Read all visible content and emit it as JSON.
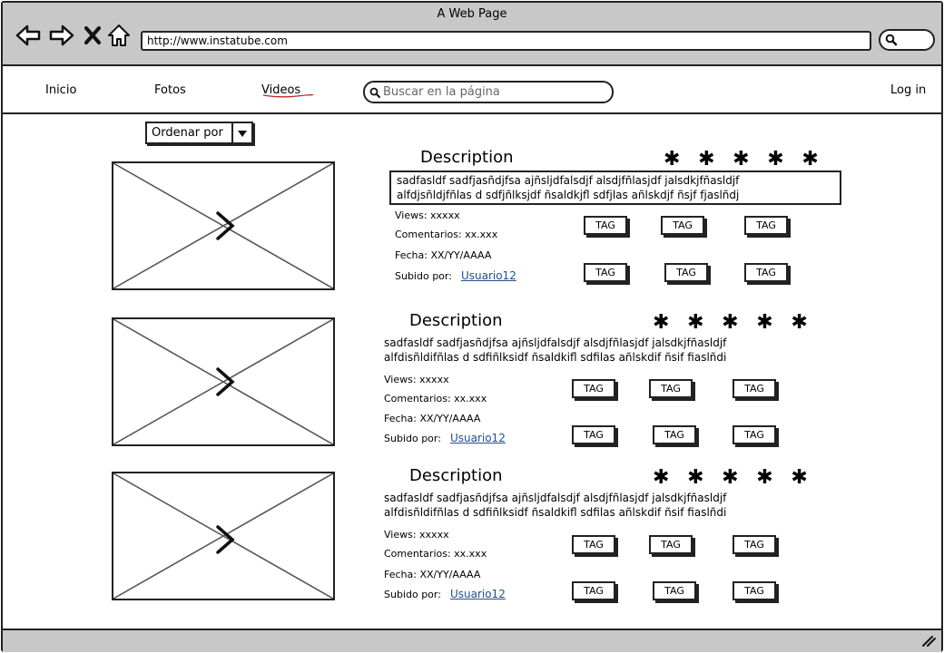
{
  "window": {
    "title": "A Web Page"
  },
  "address": {
    "url": "http://www.instatube.com"
  },
  "nav": {
    "inicio": "Inicio",
    "fotos": "Fotos",
    "videos": "Videos",
    "login": "Log in",
    "search_placeholder": "Buscar en la página"
  },
  "sort": {
    "label": "Ordenar por"
  },
  "videos": [
    {
      "title": "Description",
      "stars": "✱ ✱ ✱ ✱ ✱",
      "desc_line1": "sadfasldf  sadfjasñdjfsa  ajñsljdfalsdjf  alsdjfñlasjdf  jalsdkjfñasldjf",
      "desc_line2": "alfdjsñldjfñlas d sdfjñlksjdf  ñsaldkjfl sdfjlas  añlskdjf ñsjf   fjaslñdj",
      "views": "Views: xxxxx",
      "comments": "Comentarios: xx.xxx",
      "date": "Fecha: XX/YY/AAAA",
      "uploaded_by": "Subido por:",
      "user": "Usuario12",
      "tags": [
        "TAG",
        "TAG",
        "TAG",
        "TAG",
        "TAG",
        "TAG"
      ]
    },
    {
      "title": "Description",
      "stars": "✱ ✱ ✱ ✱ ✱",
      "desc_line1": "sadfasldf  sadfjasñdjfsa  ajñsljdfalsdjf  alsdjfñlasjdf  jalsdkjfñasldjf",
      "desc_line2": "alfdisñldifñlas d sdfiñlksidf  ñsaldkifl sdfilas  añlskdif ñsif   fiaslñdi",
      "views": "Views: xxxxx",
      "comments": "Comentarios: xx.xxx",
      "date": "Fecha: XX/YY/AAAA",
      "uploaded_by": "Subido por:",
      "user": "Usuario12",
      "tags": [
        "TAG",
        "TAG",
        "TAG",
        "TAG",
        "TAG",
        "TAG"
      ]
    },
    {
      "title": "Description",
      "stars": "✱ ✱ ✱ ✱ ✱",
      "desc_line1": "sadfasldf  sadfjasñdjfsa  ajñsljdfalsdjf  alsdjfñlasjdf  jalsdkjfñasldjf",
      "desc_line2": "alfdisñldifñlas d sdfiñlksidf  ñsaldkifl sdfilas  añlskdif ñsif   fiaslñdi",
      "views": "Views: xxxxx",
      "comments": "Comentarios: xx.xxx",
      "date": "Fecha: XX/YY/AAAA",
      "uploaded_by": "Subido por:",
      "user": "Usuario12",
      "tags": [
        "TAG",
        "TAG",
        "TAG",
        "TAG",
        "TAG",
        "TAG"
      ]
    }
  ],
  "icons": {
    "back": "arrow-left-icon",
    "forward": "arrow-right-icon",
    "stop": "close-icon",
    "home": "home-icon",
    "search": "search-icon",
    "play": "play-icon",
    "resize": "resize-grip-icon"
  },
  "colors": {
    "chrome": "#c8c8c8",
    "link": "#1f4f8c",
    "underline": "#cc2222"
  }
}
